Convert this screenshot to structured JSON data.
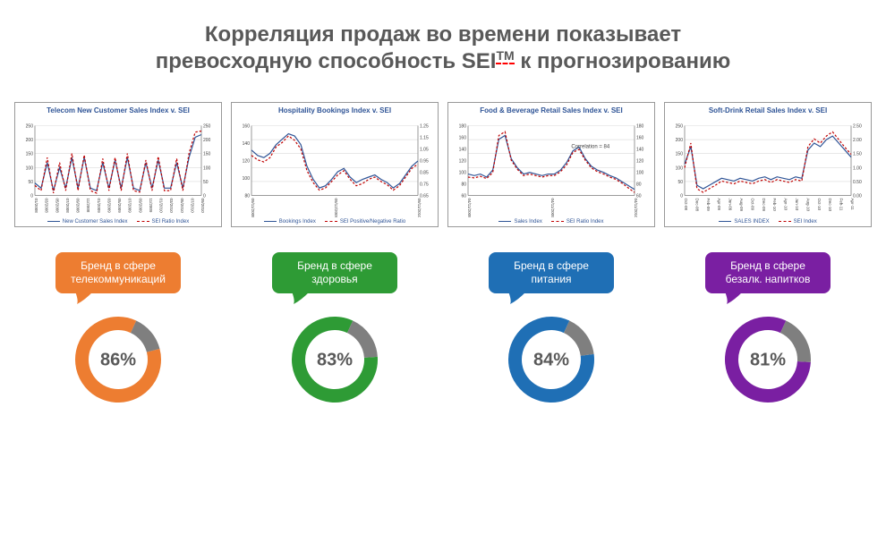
{
  "title_line1": "Корреляция продаж во времени показывает",
  "title_line2_a": "превосходную способность SEI",
  "title_tm": "TM",
  "title_line2_b": " к прогнозированию",
  "title_color": "#595959",
  "title_fontsize": 24,
  "charts": [
    {
      "title": "Telecom New Customer Sales Index v. SEI",
      "y1_ticks": [
        "250",
        "200",
        "150",
        "100",
        "50",
        "0"
      ],
      "y2_ticks": [
        "250",
        "200",
        "150",
        "100",
        "50",
        "0"
      ],
      "x_ticks": [
        "01/2008",
        "03/2008",
        "05/2008",
        "07/2008",
        "09/2008",
        "11/2008",
        "01/2009",
        "03/2009",
        "05/2009",
        "07/2009",
        "09/2009",
        "11/2009",
        "01/2010",
        "03/2010",
        "05/2010",
        "07/2010",
        "09/2010"
      ],
      "series_blue": [
        110,
        100,
        150,
        95,
        140,
        100,
        160,
        100,
        160,
        100,
        95,
        150,
        100,
        155,
        100,
        160,
        100,
        95,
        150,
        100,
        155,
        100,
        100,
        150,
        100,
        160,
        200,
        205
      ],
      "series_red": [
        105,
        95,
        160,
        90,
        150,
        95,
        168,
        95,
        165,
        95,
        90,
        158,
        95,
        160,
        95,
        168,
        95,
        92,
        155,
        95,
        162,
        95,
        95,
        158,
        95,
        168,
        210,
        212
      ],
      "legend": [
        "New Customer Sales Index",
        "SEI Ratio Index"
      ],
      "blue_color": "#2f5496",
      "red_color": "#c00000",
      "annotation": ""
    },
    {
      "title": "Hospitality Bookings Index v. SEI",
      "y1_ticks": [
        "160",
        "140",
        "120",
        "100",
        "80"
      ],
      "y2_ticks": [
        "1.25",
        "1.15",
        "1.05",
        "0.95",
        "0.85",
        "0.75",
        "0.65"
      ],
      "x_ticks": [
        "09/11/2008",
        "09/12/2009",
        "09/11/2010"
      ],
      "series_blue": [
        135,
        130,
        128,
        132,
        140,
        145,
        150,
        148,
        140,
        120,
        108,
        100,
        102,
        108,
        115,
        118,
        110,
        105,
        108,
        110,
        112,
        108,
        105,
        100,
        104,
        112,
        120,
        125
      ],
      "series_red": [
        130,
        126,
        124,
        128,
        138,
        142,
        148,
        144,
        136,
        116,
        105,
        98,
        100,
        106,
        112,
        116,
        108,
        102,
        104,
        108,
        110,
        106,
        103,
        98,
        102,
        110,
        118,
        122
      ],
      "legend": [
        "Bookings Index",
        "SEI Positive/Negative Ratio"
      ],
      "blue_color": "#2f5496",
      "red_color": "#c00000",
      "annotation": ""
    },
    {
      "title": "Food & Beverage Retail Sales Index v. SEI",
      "y1_ticks": [
        "180",
        "160",
        "140",
        "120",
        "100",
        "80",
        "60"
      ],
      "y2_ticks": [
        "180",
        "160",
        "140",
        "120",
        "100",
        "80",
        "60"
      ],
      "x_ticks": [
        "04/11/2008",
        "04/11/2009",
        "04/11/2010"
      ],
      "series_blue": [
        100,
        98,
        100,
        96,
        105,
        145,
        150,
        120,
        108,
        100,
        102,
        100,
        98,
        100,
        100,
        105,
        115,
        130,
        135,
        120,
        110,
        105,
        102,
        98,
        95,
        90,
        85,
        80
      ],
      "series_red": [
        96,
        95,
        97,
        94,
        102,
        150,
        155,
        118,
        106,
        98,
        100,
        98,
        96,
        98,
        98,
        103,
        112,
        128,
        132,
        118,
        108,
        103,
        100,
        96,
        93,
        88,
        82,
        76
      ],
      "legend": [
        "Sales Index",
        "SEI Ratio Index"
      ],
      "blue_color": "#2f5496",
      "red_color": "#c00000",
      "annotation": "Correlation = 84"
    },
    {
      "title": "Soft-Drink Retail Sales Index v. SEI",
      "y1_ticks": [
        "250",
        "200",
        "150",
        "100",
        "50",
        "0"
      ],
      "y2_ticks": [
        "2.50",
        "2.00",
        "1.50",
        "1.00",
        "0.50",
        "0.00"
      ],
      "x_ticks": [
        "Oct-08",
        "Dec-08",
        "Feb-09",
        "Apr-09",
        "Jun-09",
        "Aug-09",
        "Oct-09",
        "Dec-09",
        "Feb-10",
        "Apr-10",
        "Jun-10",
        "Aug-10",
        "Oct-10",
        "Dec-10",
        "Feb-11",
        "Apr-11"
      ],
      "series_blue": [
        130,
        155,
        100,
        95,
        100,
        105,
        110,
        108,
        106,
        110,
        108,
        106,
        110,
        112,
        108,
        112,
        110,
        108,
        112,
        110,
        150,
        160,
        155,
        165,
        170,
        160,
        150,
        140
      ],
      "series_red": [
        125,
        160,
        95,
        90,
        95,
        100,
        106,
        104,
        102,
        106,
        104,
        102,
        106,
        108,
        104,
        108,
        106,
        104,
        108,
        106,
        155,
        166,
        160,
        170,
        176,
        165,
        154,
        144
      ],
      "legend": [
        "SALES INDEX",
        "SEI Index"
      ],
      "blue_color": "#2f5496",
      "red_color": "#c00000",
      "annotation": ""
    }
  ],
  "badges": [
    {
      "label_line1": "Бренд в сфере",
      "label_line2": "телекоммуникаций",
      "value": 86,
      "pct_text": "86%",
      "color": "#ed7d31",
      "gap_color": "#7f7f7f"
    },
    {
      "label_line1": "Бренд в сфере",
      "label_line2": "здоровья",
      "value": 83,
      "pct_text": "83%",
      "color": "#2e9b35",
      "gap_color": "#7f7f7f"
    },
    {
      "label_line1": "Бренд в сфере",
      "label_line2": "питания",
      "value": 84,
      "pct_text": "84%",
      "color": "#1f6fb5",
      "gap_color": "#7f7f7f"
    },
    {
      "label_line1": "Бренд в сфере",
      "label_line2": "безалк. напитков",
      "value": 81,
      "pct_text": "81%",
      "color": "#7a1fa2",
      "gap_color": "#7f7f7f"
    }
  ],
  "donut": {
    "outer_r": 48,
    "inner_r": 33,
    "center_fontsize": 20,
    "gap_start_deg": -65
  }
}
